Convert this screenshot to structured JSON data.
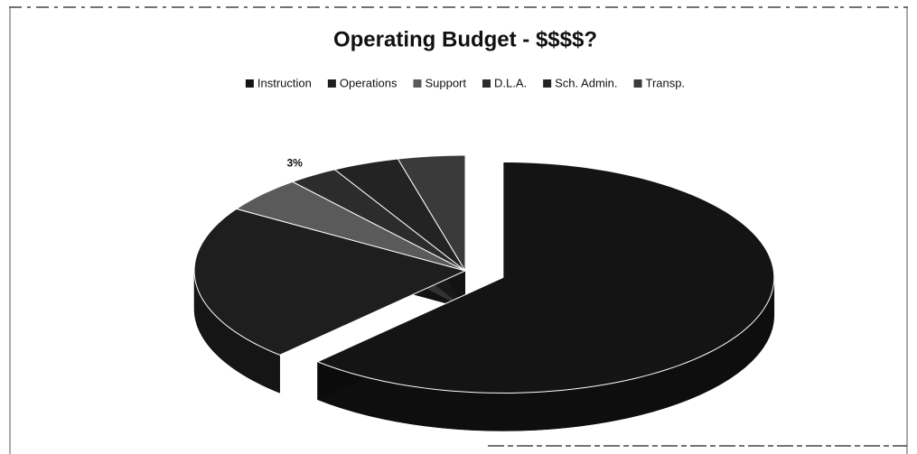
{
  "chart_data": {
    "type": "pie",
    "title": "Operating Budget - $$$$?",
    "categories": [
      "Instruction",
      "Operations",
      "Support",
      "D.L.A.",
      "Sch. Admin.",
      "Transp."
    ],
    "values": [
      62,
      22,
      5,
      3,
      4,
      4
    ],
    "value_labels": [
      null,
      null,
      null,
      "3%",
      null,
      null
    ],
    "colors": [
      "#141414",
      "#1e1e1e",
      "#5a5a5a",
      "#2c2c2c",
      "#232323",
      "#3a3a3a"
    ],
    "legend": "top",
    "explode": "Instruction"
  }
}
